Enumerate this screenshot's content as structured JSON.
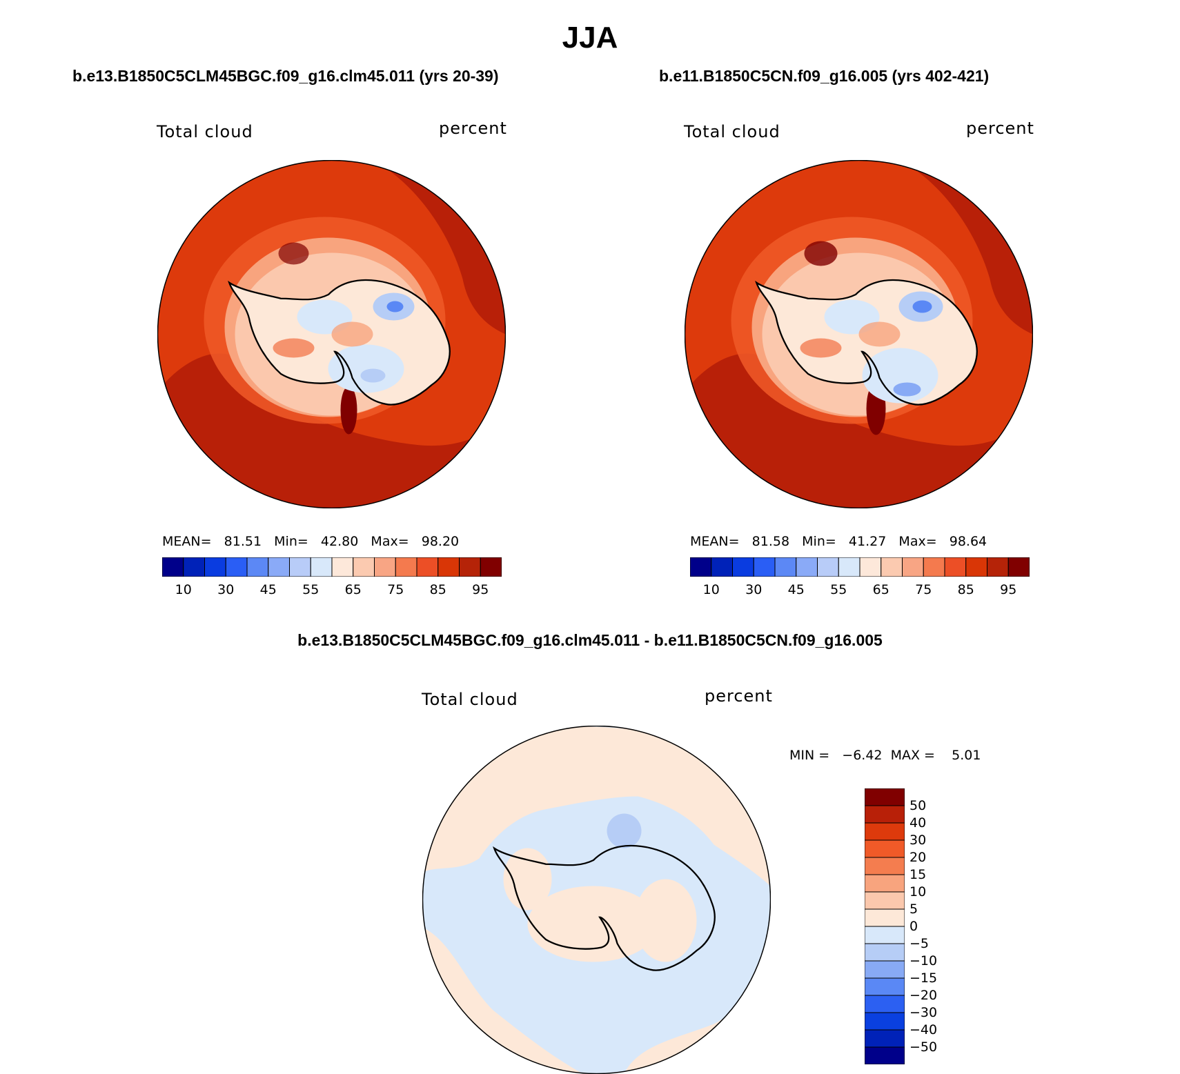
{
  "title": "JJA",
  "panels": [
    {
      "case_title": "b.e13.B1850C5CLM45BGC.f09_g16.clm45.011 (yrs 20-39)",
      "variable": "Total cloud",
      "units": "percent",
      "stats": "MEAN=   81.51   Min=   42.80   Max=   98.20"
    },
    {
      "case_title": "b.e11.B1850C5CN.f09_g16.005 (yrs 402-421)",
      "variable": "Total cloud",
      "units": "percent",
      "stats": "MEAN=   81.58   Min=   41.27   Max=   98.64"
    }
  ],
  "diff_panel": {
    "case_title": "b.e13.B1850C5CLM45BGC.f09_g16.clm45.011 - b.e11.B1850C5CN.f09_g16.005",
    "variable": "Total cloud",
    "units": "percent",
    "stats": "MIN =   −6.42  MAX =    5.01"
  },
  "colorbar_abs": {
    "colors": [
      "#00008a",
      "#0022b8",
      "#0a3ce0",
      "#2a5ef5",
      "#5c88f5",
      "#8aaaf7",
      "#b8ccf8",
      "#d8e8fa",
      "#fde8da",
      "#fbcab0",
      "#f8a584",
      "#f47a4e",
      "#ec4f26",
      "#d93606",
      "#b52308",
      "#800000"
    ],
    "tick_labels": [
      "10",
      "30",
      "45",
      "55",
      "65",
      "75",
      "85",
      "95"
    ]
  },
  "colorbar_diff": {
    "colors_top_to_bottom": [
      "#800000",
      "#b82008",
      "#dd3a0c",
      "#f05a28",
      "#f47d4f",
      "#f8a47e",
      "#fbc8ad",
      "#fde8d8",
      "#d8e8fa",
      "#b6cdf6",
      "#88aaf5",
      "#5a88f5",
      "#2c60f2",
      "#0a40e0",
      "#0022b8",
      "#00008a"
    ],
    "tick_labels": [
      "50",
      "40",
      "30",
      "20",
      "15",
      "10",
      "5",
      "0",
      "−5",
      "−10",
      "−15",
      "−20",
      "−30",
      "−40",
      "−50"
    ]
  },
  "chart_data": [
    {
      "type": "heatmap",
      "projection": "south-polar-stereographic",
      "title": "b.e13.B1850C5CLM45BGC.f09_g16.clm45.011 (yrs 20-39)",
      "variable": "Total cloud",
      "units": "percent",
      "season": "JJA",
      "mean": 81.51,
      "min": 42.8,
      "max": 98.2,
      "levels": [
        10,
        20,
        30,
        40,
        45,
        50,
        55,
        60,
        65,
        70,
        75,
        80,
        85,
        90,
        95
      ]
    },
    {
      "type": "heatmap",
      "projection": "south-polar-stereographic",
      "title": "b.e11.B1850C5CN.f09_g16.005 (yrs 402-421)",
      "variable": "Total cloud",
      "units": "percent",
      "season": "JJA",
      "mean": 81.58,
      "min": 41.27,
      "max": 98.64,
      "levels": [
        10,
        20,
        30,
        40,
        45,
        50,
        55,
        60,
        65,
        70,
        75,
        80,
        85,
        90,
        95
      ]
    },
    {
      "type": "heatmap",
      "projection": "south-polar-stereographic",
      "title": "b.e13.B1850C5CLM45BGC.f09_g16.clm45.011 - b.e11.B1850C5CN.f09_g16.005",
      "variable": "Total cloud",
      "units": "percent",
      "season": "JJA",
      "min": -6.42,
      "max": 5.01,
      "levels": [
        -50,
        -40,
        -30,
        -20,
        -15,
        -10,
        -5,
        0,
        5,
        10,
        15,
        20,
        30,
        40,
        50
      ]
    }
  ]
}
